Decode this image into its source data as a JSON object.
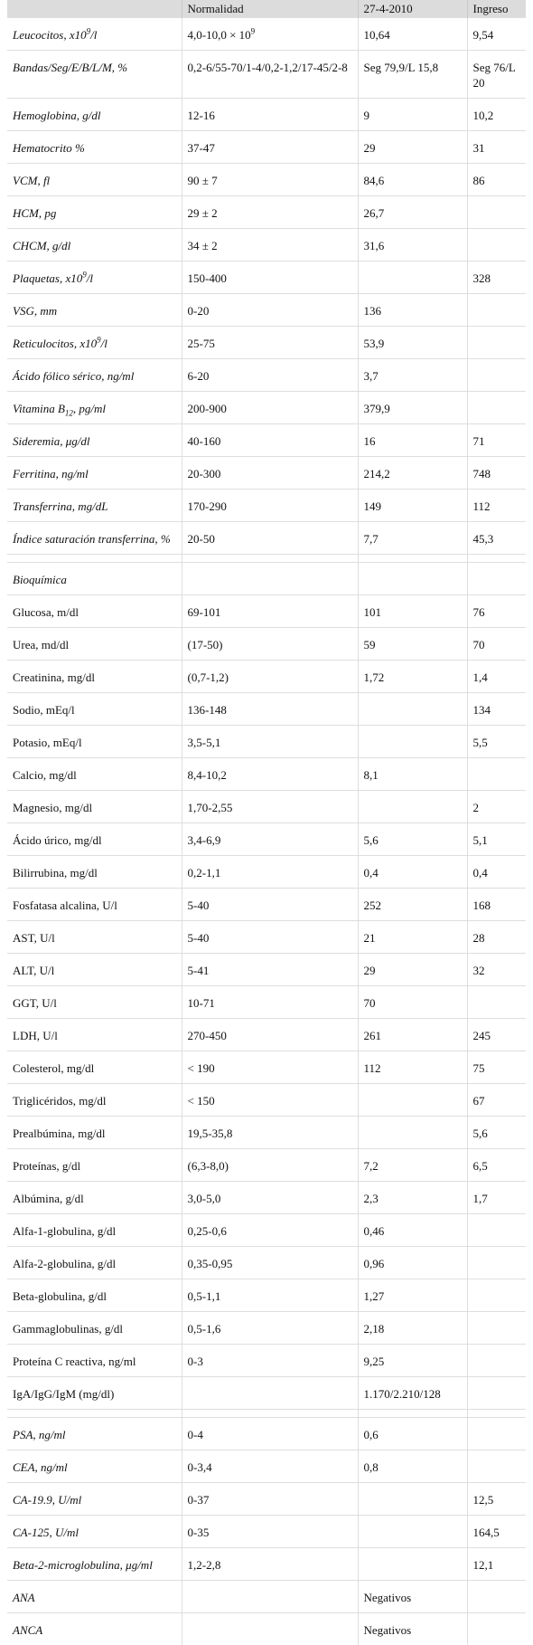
{
  "header": [
    "",
    "Normalidad",
    "27-4-2010",
    "Ingreso"
  ],
  "block1": [
    {
      "label": "Leucocitos, x10",
      "sup": "9",
      "after": "/l",
      "normal": "4,0-10,0 × 10",
      "normal_sup": "9",
      "d1": "10,64",
      "d2": "9,54"
    },
    {
      "label": "Bandas/Seg/E/B/L/M, %",
      "normal": "0,2-6/55-70/1-4/0,2-1,2/17-45/2-8",
      "d1": "Seg 79,9/L 15,8",
      "d2": "Seg 76/L 20"
    },
    {
      "label": "Hemoglobina, g/dl",
      "normal": "12-16",
      "d1": "9",
      "d2": "10,2"
    },
    {
      "label": "Hematocrito %",
      "normal": "37-47",
      "d1": "29",
      "d2": "31"
    },
    {
      "label": "VCM, fl",
      "normal": "90 ± 7",
      "d1": "84,6",
      "d2": "86"
    },
    {
      "label": "HCM, pg",
      "normal": "29 ± 2",
      "d1": "26,7",
      "d2": ""
    },
    {
      "label": "CHCM, g/dl",
      "normal": "34 ± 2",
      "d1": "31,6",
      "d2": ""
    },
    {
      "label": "Plaquetas, x10",
      "sup": "9",
      "after": "/l",
      "normal": "150-400",
      "d1": "",
      "d2": "328"
    },
    {
      "label": "VSG, mm",
      "normal": "0-20",
      "d1": "136",
      "d2": ""
    },
    {
      "label": "Reticulocitos, x10",
      "sup": "9",
      "after": "/l",
      "normal": "25-75",
      "d1": "53,9",
      "d2": ""
    },
    {
      "label": "Ácido fólico sérico, ng/ml",
      "normal": "6-20",
      "d1": "3,7",
      "d2": ""
    },
    {
      "label": "Vitamina B",
      "sub": "12",
      "after": ", pg/ml",
      "normal": "200-900",
      "d1": "379,9",
      "d2": ""
    },
    {
      "label": "Sideremia, μg/dl",
      "normal": "40-160",
      "d1": "16",
      "d2": "71"
    },
    {
      "label": "Ferritina, ng/ml",
      "normal": "20-300",
      "d1": "214,2",
      "d2": "748"
    },
    {
      "label": "Transferrina, mg/dL",
      "normal": "170-290",
      "d1": "149",
      "d2": "112"
    },
    {
      "label": "Índice saturación transferrina, %",
      "normal": "20-50",
      "d1": "7,7",
      "d2": "45,3"
    }
  ],
  "section_title": "Bioquímica",
  "block2": [
    {
      "label": "Glucosa, m/dl",
      "normal": "69-101",
      "d1": "101",
      "d2": "76"
    },
    {
      "label": "Urea, md/dl",
      "normal": "(17-50)",
      "d1": "59",
      "d2": "70"
    },
    {
      "label": "Creatinina, mg/dl",
      "normal": "(0,7-1,2)",
      "d1": "1,72",
      "d2": "1,4"
    },
    {
      "label": "Sodio, mEq/l",
      "normal": "136-148",
      "d1": "",
      "d2": "134"
    },
    {
      "label": "Potasio, mEq/l",
      "normal": "3,5-5,1",
      "d1": "",
      "d2": "5,5"
    },
    {
      "label": "Calcio, mg/dl",
      "normal": "8,4-10,2",
      "d1": "8,1",
      "d2": ""
    },
    {
      "label": "Magnesio, mg/dl",
      "normal": "1,70-2,55",
      "d1": "",
      "d2": "2"
    },
    {
      "label": "Ácido úrico, mg/dl",
      "normal": "3,4-6,9",
      "d1": "5,6",
      "d2": "5,1"
    },
    {
      "label": "Bilirrubina, mg/dl",
      "normal": "0,2-1,1",
      "d1": "0,4",
      "d2": "0,4"
    },
    {
      "label": "Fosfatasa alcalina, U/l",
      "normal": "5-40",
      "d1": "252",
      "d2": "168"
    },
    {
      "label": "AST, U/l",
      "normal": "5-40",
      "d1": "21",
      "d2": "28"
    },
    {
      "label": "ALT, U/l",
      "normal": "5-41",
      "d1": "29",
      "d2": "32"
    },
    {
      "label": "GGT, U/l",
      "normal": "10-71",
      "d1": "70",
      "d2": ""
    },
    {
      "label": "LDH, U/l",
      "normal": "270-450",
      "d1": "261",
      "d2": "245"
    },
    {
      "label": "Colesterol, mg/dl",
      "normal": "< 190",
      "d1": "112",
      "d2": "75"
    },
    {
      "label": "Triglicéridos, mg/dl",
      "normal": "< 150",
      "d1": "",
      "d2": "67"
    },
    {
      "label": "Prealbúmina, mg/dl",
      "normal": "19,5-35,8",
      "d1": "",
      "d2": "5,6"
    },
    {
      "label": "Proteínas, g/dl",
      "normal": "(6,3-8,0)",
      "d1": "7,2",
      "d2": "6,5"
    },
    {
      "label": "Albúmina, g/dl",
      "normal": "3,0-5,0",
      "d1": "2,3",
      "d2": "1,7"
    },
    {
      "label": "Alfa-1-globulina, g/dl",
      "normal": "0,25-0,6",
      "d1": "0,46",
      "d2": ""
    },
    {
      "label": "Alfa-2-globulina, g/dl",
      "normal": "0,35-0,95",
      "d1": "0,96",
      "d2": ""
    },
    {
      "label": "Beta-globulina, g/dl",
      "normal": "0,5-1,1",
      "d1": "1,27",
      "d2": ""
    },
    {
      "label": "Gammaglobulinas, g/dl",
      "normal": "0,5-1,6",
      "d1": "2,18",
      "d2": ""
    },
    {
      "label": "Proteína C reactiva, ng/ml",
      "normal": "0-3",
      "d1": "9,25",
      "d2": ""
    },
    {
      "label": "IgA/IgG/IgM (mg/dl)",
      "normal": "",
      "d1": "1.170/2.210/128",
      "d2": ""
    }
  ],
  "block3": [
    {
      "label": "PSA, ng/ml",
      "normal": "0-4",
      "d1": "0,6",
      "d2": ""
    },
    {
      "label": "CEA, ng/ml",
      "normal": "0-3,4",
      "d1": "0,8",
      "d2": ""
    },
    {
      "label": "CA-19.9, U/ml",
      "normal": "0-37",
      "d1": "",
      "d2": "12,5"
    },
    {
      "label": "CA-125, U/ml",
      "normal": "0-35",
      "d1": "",
      "d2": "164,5"
    },
    {
      "label": "Beta-2-microglobulina, μg/ml",
      "normal": "1,2-2,8",
      "d1": "",
      "d2": "12,1"
    },
    {
      "label": "ANA",
      "normal": "",
      "d1": "Negativos",
      "d2": ""
    },
    {
      "label": "ANCA",
      "normal": "",
      "d1": "Negativos",
      "d2": ""
    }
  ]
}
